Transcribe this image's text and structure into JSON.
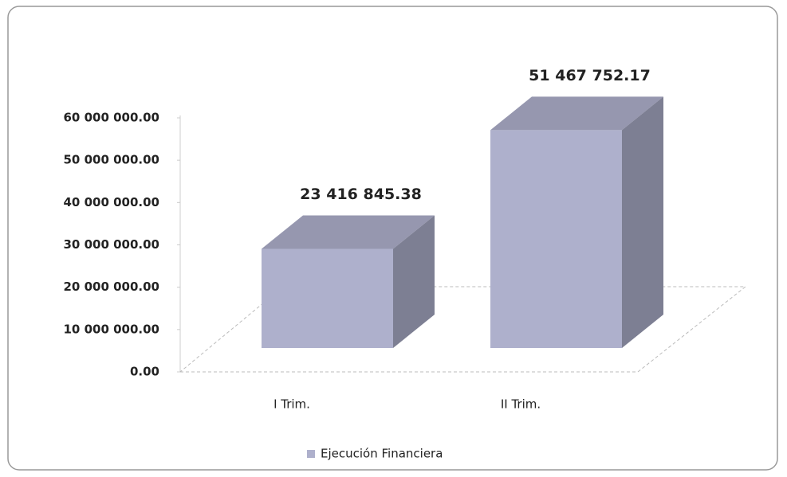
{
  "chart_data": {
    "type": "bar",
    "categories": [
      "I Trim.",
      "II Trim."
    ],
    "series": [
      {
        "name": "Ejecución Financiera",
        "color": "#aeb0cc",
        "values": [
          23416845.38,
          51467752.17
        ],
        "value_labels": [
          "23 416 845.38",
          "51 467 752.17"
        ]
      }
    ],
    "ylim": [
      0,
      60000000
    ],
    "yticks": [
      {
        "value": 0,
        "label": "0.00"
      },
      {
        "value": 10000000,
        "label": "10 000 000.00"
      },
      {
        "value": 20000000,
        "label": "20 000 000.00"
      },
      {
        "value": 30000000,
        "label": "30 000 000.00"
      },
      {
        "value": 40000000,
        "label": "40 000 000.00"
      },
      {
        "value": 50000000,
        "label": "50 000 000.00"
      },
      {
        "value": 60000000,
        "label": "60 000 000.00"
      }
    ],
    "grid": false,
    "legend": "bottom"
  }
}
